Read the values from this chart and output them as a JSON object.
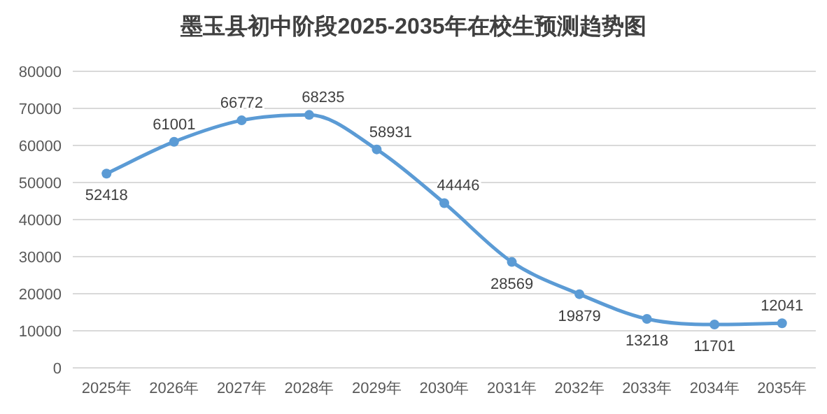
{
  "chart_data": {
    "type": "line",
    "title": "墨玉县初中阶段2025-2035年在校生预测趋势图",
    "categories": [
      "2025年",
      "2026年",
      "2027年",
      "2028年",
      "2029年",
      "2030年",
      "2031年",
      "2032年",
      "2033年",
      "2034年",
      "2035年"
    ],
    "series": [
      {
        "color": "#5b9bd5",
        "values": [
          52418,
          61001,
          66772,
          68235,
          58931,
          44446,
          28569,
          19879,
          13218,
          11701,
          12041
        ]
      }
    ],
    "ylim": [
      0,
      80000
    ],
    "yticks": [
      0,
      10000,
      20000,
      30000,
      40000,
      50000,
      60000,
      70000,
      80000
    ],
    "grid": "y",
    "marker": "circle",
    "line_style": "solid",
    "data_labels": true
  }
}
